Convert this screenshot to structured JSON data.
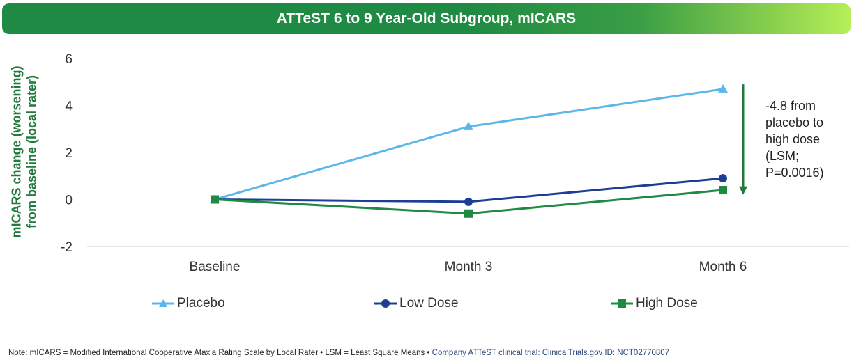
{
  "chart_data": {
    "type": "line",
    "title": "ATTeST 6 to 9 Year-Old Subgroup, mICARS",
    "ylabel_lines": [
      "mICARS change (worsening)",
      "from baseline (local rater)"
    ],
    "xlabel": "",
    "categories": [
      "Baseline",
      "Month 3",
      "Month 6"
    ],
    "ylim": [
      -2,
      6
    ],
    "yticks": [
      -2,
      0,
      2,
      4,
      6
    ],
    "series": [
      {
        "name": "Placebo",
        "values": [
          0,
          3.1,
          4.7
        ],
        "color": "#5bb7ea",
        "marker": "triangle"
      },
      {
        "name": "Low Dose",
        "values": [
          0,
          -0.1,
          0.9
        ],
        "color": "#1c3f94",
        "marker": "circle"
      },
      {
        "name": "High Dose",
        "values": [
          0,
          -0.6,
          0.4
        ],
        "color": "#1f8a43",
        "marker": "square"
      }
    ],
    "annotation": {
      "lines": [
        "-4.8 from",
        "placebo to",
        "high dose",
        "(LSM;",
        "P=0.0016)"
      ],
      "arrow_from": 4.9,
      "arrow_to": 0.2,
      "color": "#1f7a3b"
    }
  },
  "footer": {
    "note": "Note: mICARS = Modified International Cooperative Ataxia Rating Scale by Local Rater • LSM = Least Square Means • ",
    "source": "Company ATTeST clinical trial: ClinicalTrials.gov ID: NCT02770807"
  }
}
